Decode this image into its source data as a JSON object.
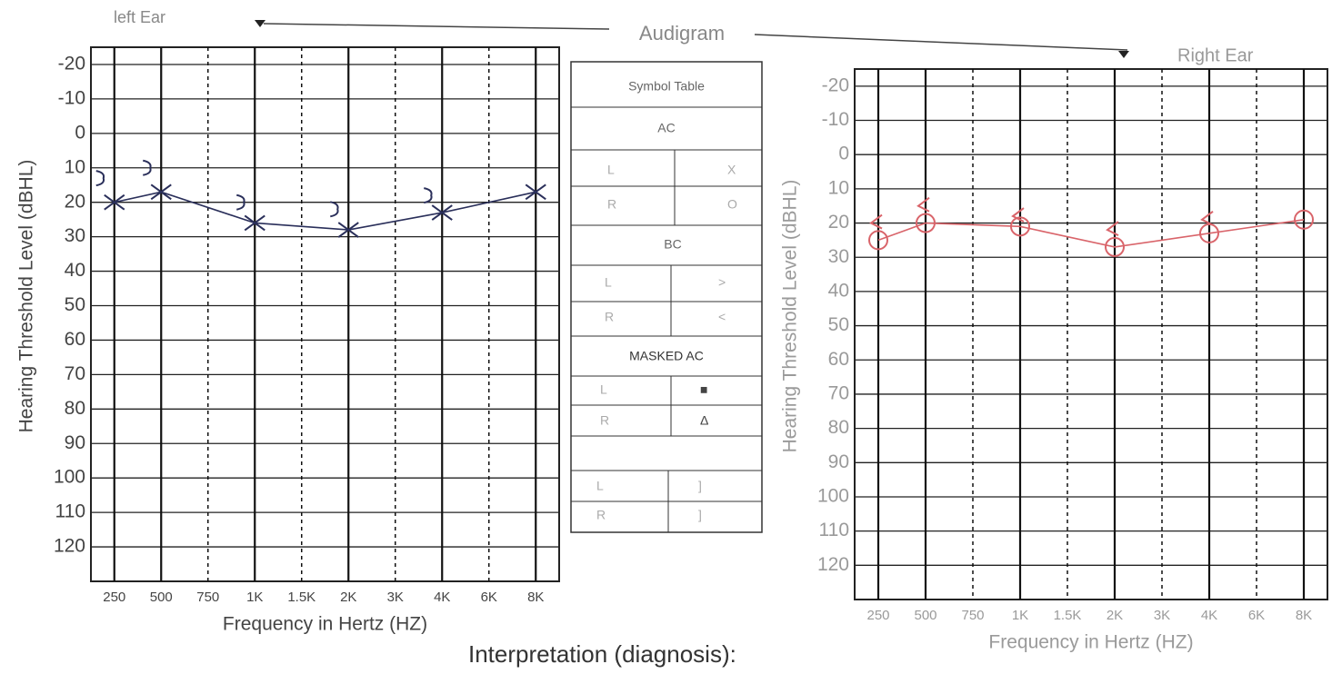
{
  "header": {
    "left_ear": "left Ear",
    "title": "Audigram",
    "right_ear": "Right Ear",
    "interpretation": "Interpretation (diagnosis):"
  },
  "symbol_table": {
    "title": "Symbol Table",
    "ac": "AC",
    "ac_rows": [
      [
        "L",
        "X"
      ],
      [
        "R",
        "O"
      ]
    ],
    "bc": "BC",
    "bc_rows": [
      [
        "L",
        ">"
      ],
      [
        "R",
        "<"
      ]
    ],
    "masked": "MASKED AC",
    "masked_rows": [
      [
        "L",
        "■"
      ],
      [
        "R",
        "Δ"
      ]
    ],
    "extra_rows": [
      [
        "L",
        "]"
      ],
      [
        "R",
        "]"
      ]
    ]
  },
  "chart_data": [
    {
      "type": "line",
      "y_label": "Hearing Threshold Level (dBHL)",
      "x_label": "Frequency in Hertz (HZ)",
      "categories": [
        "250",
        "500",
        "750",
        "1K",
        "1.5K",
        "2K",
        "3K",
        "4K",
        "6K",
        "8K"
      ],
      "x_dashed": [
        false,
        false,
        true,
        false,
        true,
        false,
        true,
        false,
        true,
        false
      ],
      "ylim": [
        -25,
        130
      ],
      "yticks": [
        -20,
        -10,
        0,
        10,
        20,
        30,
        40,
        50,
        60,
        70,
        80,
        90,
        100,
        110,
        120
      ],
      "grid": true,
      "text_color": "#444444",
      "series": [
        {
          "color": "#2a2f5a",
          "marker": "x",
          "connect": true,
          "x": [
            "250",
            "500",
            "1K",
            "2K",
            "4K",
            "8K"
          ],
          "values": [
            20,
            17,
            26,
            28,
            23,
            17
          ]
        },
        {
          "color": "#2a2f5a",
          "marker": "bracket-right",
          "connect": false,
          "x": [
            "250",
            "500",
            "1K",
            "2K",
            "4K"
          ],
          "values": [
            13,
            10,
            20,
            22,
            18
          ]
        }
      ]
    },
    {
      "type": "line",
      "y_label": "Hearing Threshold Level (dBHL)",
      "x_label": "Frequency in Hertz (HZ)",
      "categories": [
        "250",
        "500",
        "750",
        "1K",
        "1.5K",
        "2K",
        "3K",
        "4K",
        "6K",
        "8K"
      ],
      "x_dashed": [
        false,
        false,
        true,
        false,
        true,
        false,
        true,
        false,
        true,
        false
      ],
      "ylim": [
        -25,
        130
      ],
      "yticks": [
        -20,
        -10,
        0,
        10,
        20,
        30,
        40,
        50,
        60,
        70,
        80,
        90,
        100,
        110,
        120
      ],
      "grid": true,
      "text_color": "#9a9a9a",
      "series": [
        {
          "color": "#d9646a",
          "marker": "o",
          "connect": true,
          "x": [
            "250",
            "500",
            "1K",
            "2K",
            "4K",
            "8K"
          ],
          "values": [
            25,
            20,
            21,
            27,
            23,
            19
          ]
        },
        {
          "color": "#d9646a",
          "marker": "bracket-left",
          "connect": false,
          "x": [
            "250",
            "500",
            "1K",
            "2K",
            "4K"
          ],
          "values": [
            20,
            15,
            18,
            22,
            19
          ]
        }
      ]
    }
  ]
}
